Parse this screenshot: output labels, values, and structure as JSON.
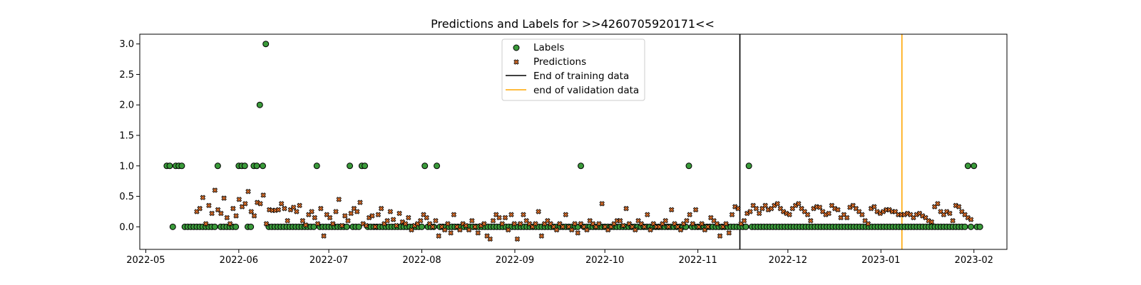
{
  "chart_data": {
    "type": "scatter",
    "title": "Predictions and Labels for >>4260705920171<<",
    "xlabel": "",
    "ylabel": "",
    "x_range": [
      "2022-04-29",
      "2023-02-12"
    ],
    "ylim": [
      -0.37,
      3.16
    ],
    "x_ticks": [
      "2022-05-01",
      "2022-06-01",
      "2022-07-01",
      "2022-08-01",
      "2022-09-01",
      "2022-10-01",
      "2022-11-01",
      "2022-12-01",
      "2023-01-01",
      "2023-02-01"
    ],
    "x_tick_labels": [
      "2022-05",
      "2022-06",
      "2022-07",
      "2022-08",
      "2022-09",
      "2022-10",
      "2022-11",
      "2022-12",
      "2023-01",
      "2023-02"
    ],
    "y_ticks": [
      0.0,
      0.5,
      1.0,
      1.5,
      2.0,
      2.5,
      3.0
    ],
    "y_tick_labels": [
      "0.0",
      "0.5",
      "1.0",
      "1.5",
      "2.0",
      "2.5",
      "3.0"
    ],
    "grid": false,
    "legend_position": "top-center",
    "series": [
      {
        "name": "Labels",
        "marker": "circle",
        "color": "#3a9a3a",
        "start_date": "2022-05-08",
        "end_date": "2023-02-03",
        "baseline_value": 0,
        "nonzero_points": [
          {
            "x": "2022-05-08",
            "y": 1
          },
          {
            "x": "2022-05-09",
            "y": 1
          },
          {
            "x": "2022-05-10",
            "y": 0
          },
          {
            "x": "2022-05-11",
            "y": 1
          },
          {
            "x": "2022-05-12",
            "y": 1
          },
          {
            "x": "2022-05-13",
            "y": 1
          },
          {
            "x": "2022-05-25",
            "y": 1
          },
          {
            "x": "2022-06-01",
            "y": 1
          },
          {
            "x": "2022-06-02",
            "y": 1
          },
          {
            "x": "2022-06-03",
            "y": 1
          },
          {
            "x": "2022-06-06",
            "y": 1
          },
          {
            "x": "2022-06-07",
            "y": 1
          },
          {
            "x": "2022-06-08",
            "y": 2
          },
          {
            "x": "2022-06-09",
            "y": 1
          },
          {
            "x": "2022-06-10",
            "y": 3
          },
          {
            "x": "2022-06-27",
            "y": 1
          },
          {
            "x": "2022-07-08",
            "y": 1
          },
          {
            "x": "2022-07-12",
            "y": 1
          },
          {
            "x": "2022-07-13",
            "y": 1
          },
          {
            "x": "2022-08-02",
            "y": 1
          },
          {
            "x": "2022-08-06",
            "y": 1
          },
          {
            "x": "2022-09-23",
            "y": 1
          },
          {
            "x": "2022-10-29",
            "y": 1
          },
          {
            "x": "2022-11-18",
            "y": 1
          },
          {
            "x": "2023-01-30",
            "y": 1
          },
          {
            "x": "2023-02-01",
            "y": 1
          }
        ]
      },
      {
        "name": "Predictions",
        "marker": "x",
        "color": "#e8742a",
        "start_date": "2022-05-18",
        "end_date": "2023-01-31",
        "values": [
          0.25,
          0.3,
          0.48,
          0.05,
          0.35,
          0.22,
          0.6,
          0.28,
          0.22,
          0.47,
          0.15,
          0.05,
          0.3,
          0.18,
          0.45,
          0.33,
          0.38,
          0.58,
          0.25,
          0.18,
          0.4,
          0.38,
          0.52,
          0.05,
          0.28,
          0.27,
          0.27,
          0.28,
          0.38,
          0.3,
          0.1,
          0.28,
          0.32,
          0.25,
          0.35,
          0.1,
          0.03,
          0.2,
          0.25,
          0.15,
          0.05,
          0.3,
          -0.15,
          0.2,
          0.15,
          0.05,
          0.25,
          0.45,
          0.02,
          0.18,
          0.1,
          0.22,
          0.3,
          0.25,
          0.4,
          0.05,
          0.02,
          0.15,
          0.18,
          0.0,
          0.2,
          0.3,
          0.05,
          0.1,
          0.25,
          0.12,
          0.02,
          0.22,
          0.08,
          0.05,
          0.15,
          -0.05,
          0.02,
          0.05,
          0.1,
          0.2,
          0.15,
          0.05,
          0.0,
          0.1,
          -0.15,
          0.0,
          -0.05,
          0.05,
          -0.1,
          0.2,
          0.0,
          -0.05,
          0.05,
          0.02,
          -0.05,
          0.1,
          0.0,
          -0.1,
          0.02,
          0.05,
          -0.15,
          -0.2,
          0.1,
          0.2,
          0.15,
          0.05,
          0.15,
          -0.05,
          0.2,
          0.05,
          -0.2,
          0.05,
          0.2,
          0.1,
          0.05,
          0.0,
          0.05,
          0.25,
          -0.15,
          0.05,
          0.1,
          0.05,
          0.0,
          -0.05,
          0.05,
          0.0,
          0.2,
          0.0,
          -0.05,
          0.05,
          -0.1,
          0.05,
          0.0,
          -0.05,
          0.1,
          0.05,
          0.0,
          0.05,
          0.38,
          0.0,
          -0.05,
          0.0,
          0.05,
          0.1,
          0.1,
          0.02,
          0.3,
          0.05,
          0.0,
          -0.05,
          0.1,
          0.05,
          0.0,
          0.2,
          -0.05,
          0.05,
          0.0,
          0.0,
          0.05,
          0.1,
          0.0,
          0.28,
          0.05,
          0.0,
          -0.05,
          0.05,
          0.1,
          0.2,
          0.05,
          0.28,
          0.0,
          0.05,
          -0.05,
          0.0,
          0.15,
          0.1,
          0.05,
          -0.15,
          0.0,
          0.05,
          -0.1,
          0.2,
          0.33,
          0.3,
          0.05,
          0.1,
          0.22,
          0.25,
          0.35,
          0.3,
          0.22,
          0.3,
          0.35,
          0.28,
          0.3,
          0.35,
          0.38,
          0.3,
          0.25,
          0.22,
          0.2,
          0.3,
          0.35,
          0.38,
          0.3,
          0.25,
          0.2,
          0.1,
          0.3,
          0.33,
          0.32,
          0.25,
          0.2,
          0.22,
          0.35,
          0.3,
          0.28,
          0.15,
          0.2,
          0.15,
          0.32,
          0.35,
          0.3,
          0.25,
          0.2,
          0.1,
          0.05,
          0.3,
          0.33,
          0.25,
          0.22,
          0.25,
          0.28,
          0.28,
          0.25,
          0.25,
          0.2,
          0.2,
          0.2,
          0.22,
          0.2,
          0.15,
          0.2,
          0.22,
          0.18,
          0.15,
          0.1,
          0.08,
          0.33,
          0.38,
          0.25,
          0.2,
          0.25,
          0.22,
          0.1,
          0.35,
          0.33,
          0.25,
          0.2,
          0.15,
          0.12
        ]
      }
    ],
    "reference_lines": [
      {
        "name": "End of training data",
        "x": "2022-11-15",
        "color": "#000000"
      },
      {
        "name": "end of validation data",
        "x": "2023-01-08",
        "color": "#ffa500"
      }
    ]
  }
}
